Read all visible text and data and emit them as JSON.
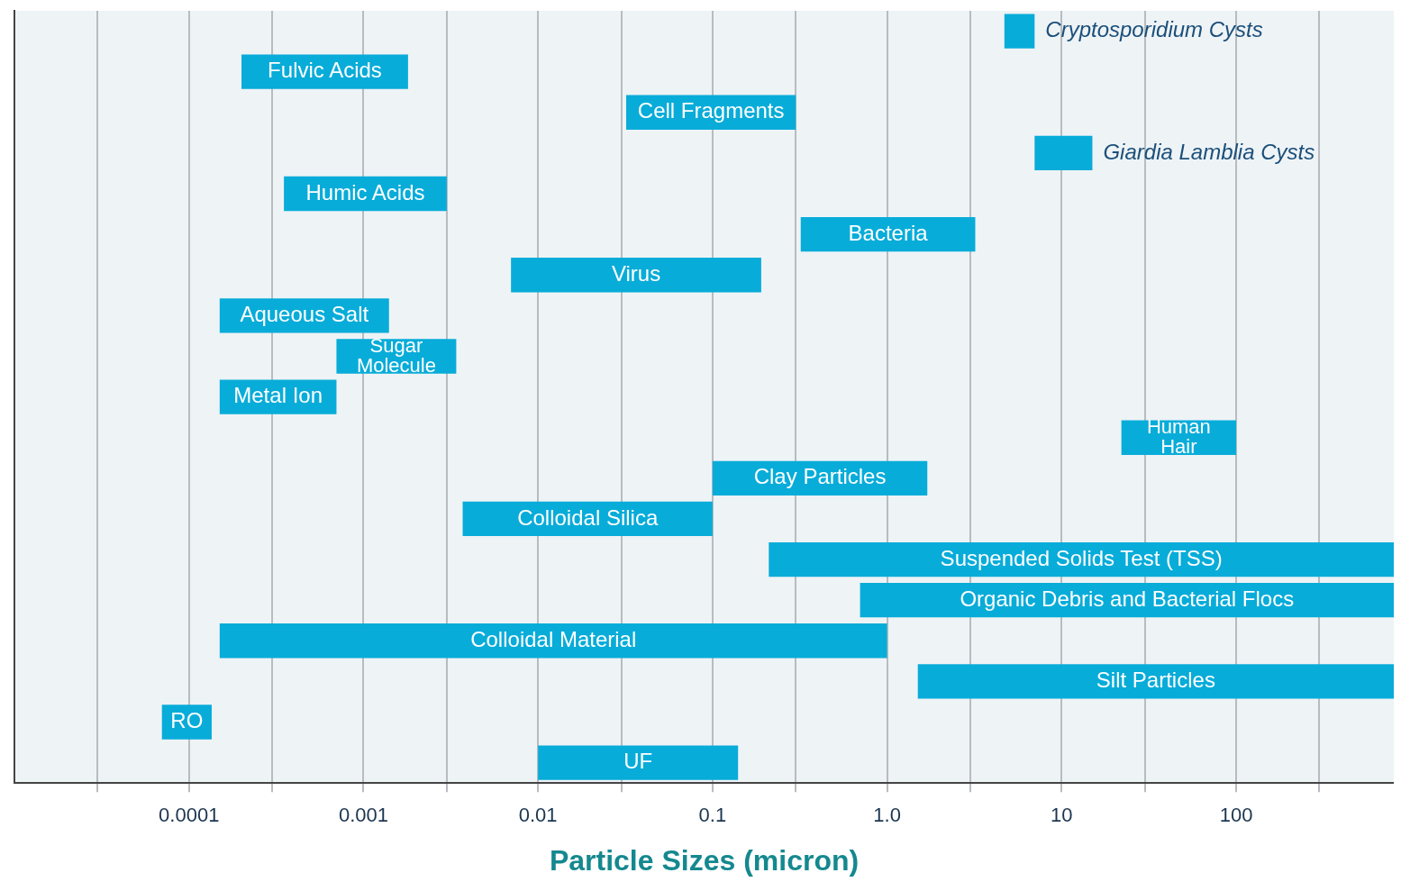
{
  "chart_data": {
    "type": "bar",
    "orientation": "horizontal",
    "log": "x",
    "xlabel": "Particle Sizes (micron)",
    "categories": [
      "Cryptosporidium Cysts",
      "Fulvic Acids",
      "Cell Fragments",
      "Giardia Lamblia Cysts",
      "Humic Acids",
      "Bacteria",
      "Virus",
      "Aqueous Salt",
      "Sugar Molecule",
      "Metal Ion",
      "Human Hair",
      "Clay Particles",
      "Colloidal Silica",
      "Suspended Solids Test (TSS)",
      "Organic Debris and Bacterial Flocs",
      "Colloidal Material",
      "Silt Particles",
      "RO",
      "UF"
    ],
    "base": [
      4.7,
      0.0002,
      0.032,
      7,
      0.00035,
      0.32,
      0.007,
      0.00015,
      0.0007,
      0.00015,
      22,
      0.1,
      0.0037,
      0.21,
      0.7,
      0.00015,
      1.5,
      7e-05,
      0.01
    ],
    "values": [
      2.3,
      0.0016,
      0.268,
      8,
      0.00265,
      2.88,
      0.183,
      0.00125,
      0.0027,
      0.00055,
      78,
      1.6,
      0.0963,
      799.79,
      799.3,
      0.99985,
      798.5,
      6.5e-05,
      0.13
    ],
    "color": "#08acd9",
    "xlim": [
      1e-05,
      800
    ],
    "xticks": [
      {
        "value": 3e-05,
        "label": null
      },
      {
        "value": 0.0001,
        "label": "0.0001"
      },
      {
        "value": 0.0003,
        "label": null
      },
      {
        "value": 0.001,
        "label": "0.001"
      },
      {
        "value": 0.003,
        "label": null
      },
      {
        "value": 0.01,
        "label": "0.01"
      },
      {
        "value": 0.03,
        "label": null
      },
      {
        "value": 0.1,
        "label": "0.1"
      },
      {
        "value": 0.3,
        "label": null
      },
      {
        "value": 1,
        "label": "1.0"
      },
      {
        "value": 3,
        "label": null
      },
      {
        "value": 10,
        "label": "10"
      },
      {
        "value": 30,
        "label": null
      },
      {
        "value": 100,
        "label": "100"
      },
      {
        "value": 300,
        "label": null
      }
    ],
    "grid": "x",
    "tick_labels": "x"
  }
}
